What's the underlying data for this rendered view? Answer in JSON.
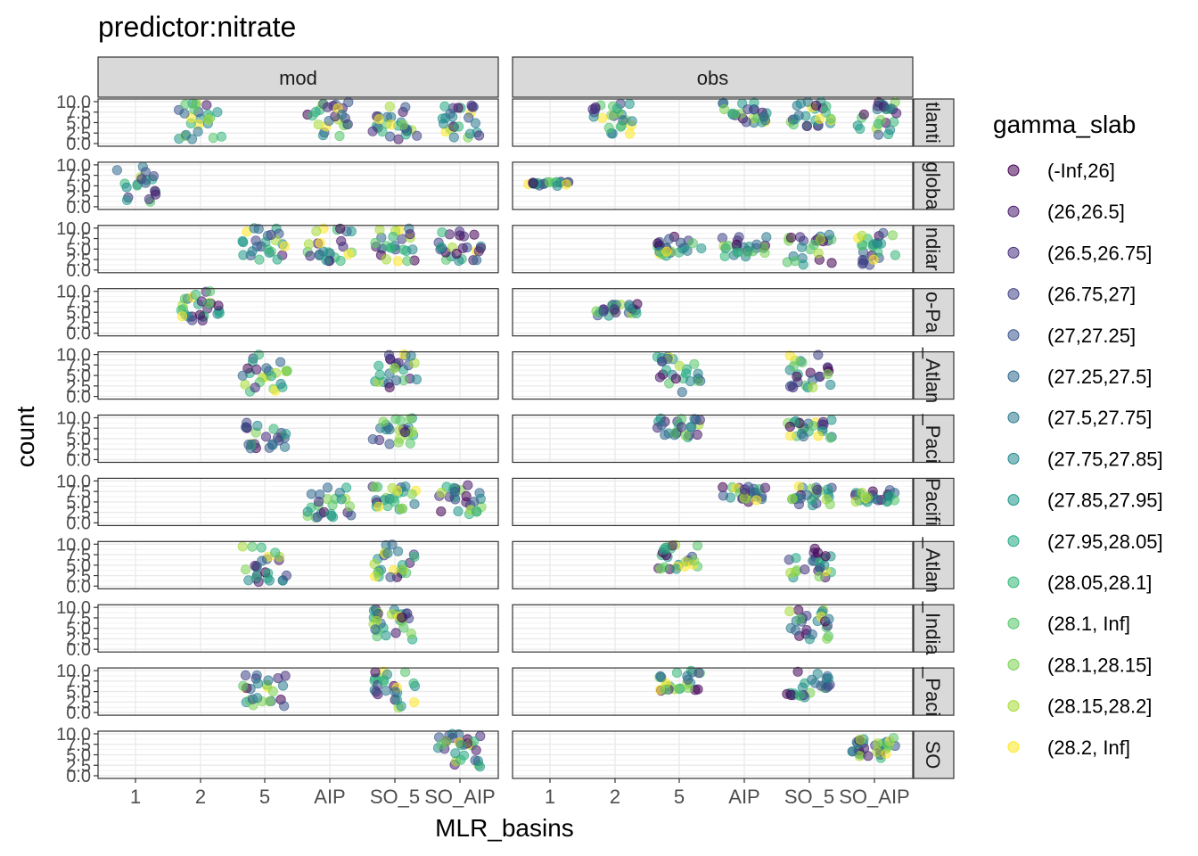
{
  "chart_data": {
    "type": "scatter",
    "title": "predictor:nitrate",
    "xlabel": "MLR_basins",
    "ylabel": "count",
    "x_categories": [
      "1",
      "2",
      "5",
      "AIP",
      "SO_5",
      "SO_AIP"
    ],
    "y_ticks": [
      "0.0",
      "2.5",
      "5.0",
      "7.5",
      "10.0"
    ],
    "ylim": [
      0,
      10
    ],
    "column_facets": [
      "mod",
      "obs"
    ],
    "row_facets": [
      "Atlantic",
      "global",
      "Indian",
      "Indo-Pacific",
      "N_Atlantic",
      "N_Pacific",
      "Pacific",
      "S_Atlantic",
      "S_Indian",
      "S_Pacific",
      "SO"
    ],
    "row_facet_labels": [
      "tlanti",
      "globa",
      "ndiar",
      "o-Pa",
      "_Atlan",
      "_Paci",
      "Pacifi",
      "_Atlan",
      "_India",
      "_Paci",
      "SO"
    ],
    "legend": {
      "title": "gamma_slab",
      "placement": "right",
      "entries": [
        "(-Inf,26]",
        "(26,26.5]",
        "(26.5,26.75]",
        "(26.75,27]",
        "(27,27.25]",
        "(27.25,27.5]",
        "(27.5,27.75]",
        "(27.75,27.85]",
        "(27.85,27.95]",
        "(27.95,28.05]",
        "(28.05,28.1]",
        "(28.1, Inf]",
        "(28.1,28.15]",
        "(28.15,28.2]",
        "(28.2, Inf]"
      ],
      "colors": [
        "#440154",
        "#481A6C",
        "#472F7D",
        "#414487",
        "#39568C",
        "#31688E",
        "#2A788E",
        "#23888E",
        "#1F988B",
        "#22A884",
        "#35B779",
        "#54C568",
        "#7AD151",
        "#A5DB36",
        "#FDE725"
      ]
    },
    "point_alpha": 0.55,
    "jitter": {
      "x": 0.35,
      "y": 1.0
    },
    "grid": true,
    "theme": "bw",
    "panels": [
      {
        "row": "Atlantic",
        "col": "mod",
        "groups": [
          {
            "x": "2",
            "n": 25,
            "y": [
              1,
              10
            ]
          },
          {
            "x": "AIP",
            "n": 25,
            "y": [
              1,
              10
            ]
          },
          {
            "x": "SO_5",
            "n": 25,
            "y": [
              1,
              10
            ]
          },
          {
            "x": "SO_AIP",
            "n": 25,
            "y": [
              1,
              10
            ]
          }
        ]
      },
      {
        "row": "Atlantic",
        "col": "obs",
        "groups": [
          {
            "x": "2",
            "n": 25,
            "y": [
              2,
              10
            ]
          },
          {
            "x": "AIP",
            "n": 25,
            "y": [
              5,
              10
            ]
          },
          {
            "x": "SO_5",
            "n": 25,
            "y": [
              4,
              10
            ]
          },
          {
            "x": "SO_AIP",
            "n": 25,
            "y": [
              2,
              10
            ]
          }
        ]
      },
      {
        "row": "global",
        "col": "mod",
        "groups": [
          {
            "x": "1",
            "n": 20,
            "y": [
              1,
              10
            ]
          }
        ]
      },
      {
        "row": "global",
        "col": "obs",
        "groups": [
          {
            "x": "1",
            "n": 20,
            "y": [
              5,
              6
            ]
          }
        ]
      },
      {
        "row": "Indian",
        "col": "mod",
        "groups": [
          {
            "x": "5",
            "n": 25,
            "y": [
              2,
              10
            ]
          },
          {
            "x": "AIP",
            "n": 25,
            "y": [
              2,
              10
            ]
          },
          {
            "x": "SO_5",
            "n": 25,
            "y": [
              2,
              10
            ]
          },
          {
            "x": "SO_AIP",
            "n": 25,
            "y": [
              2,
              10
            ]
          }
        ]
      },
      {
        "row": "Indian",
        "col": "obs",
        "groups": [
          {
            "x": "5",
            "n": 25,
            "y": [
              3,
              8
            ]
          },
          {
            "x": "AIP",
            "n": 25,
            "y": [
              3,
              8
            ]
          },
          {
            "x": "SO_5",
            "n": 25,
            "y": [
              1,
              9
            ]
          },
          {
            "x": "SO_AIP",
            "n": 25,
            "y": [
              1,
              9
            ]
          }
        ]
      },
      {
        "row": "Indo-Pacific",
        "col": "mod",
        "groups": [
          {
            "x": "2",
            "n": 28,
            "y": [
              3,
              10
            ]
          }
        ]
      },
      {
        "row": "Indo-Pacific",
        "col": "obs",
        "groups": [
          {
            "x": "2",
            "n": 25,
            "y": [
              4,
              7
            ]
          }
        ]
      },
      {
        "row": "N_Atlantic",
        "col": "mod",
        "groups": [
          {
            "x": "5",
            "n": 25,
            "y": [
              1,
              10
            ]
          },
          {
            "x": "SO_5",
            "n": 25,
            "y": [
              2,
              10
            ]
          }
        ]
      },
      {
        "row": "N_Atlantic",
        "col": "obs",
        "groups": [
          {
            "x": "5",
            "n": 25,
            "y": [
              1,
              10
            ]
          },
          {
            "x": "SO_5",
            "n": 25,
            "y": [
              2,
              10
            ]
          }
        ]
      },
      {
        "row": "N_Pacific",
        "col": "mod",
        "groups": [
          {
            "x": "5",
            "n": 25,
            "y": [
              2,
              9
            ]
          },
          {
            "x": "SO_5",
            "n": 25,
            "y": [
              3,
              10
            ]
          }
        ]
      },
      {
        "row": "N_Pacific",
        "col": "obs",
        "groups": [
          {
            "x": "5",
            "n": 25,
            "y": [
              5,
              10
            ]
          },
          {
            "x": "SO_5",
            "n": 25,
            "y": [
              5,
              10
            ]
          }
        ]
      },
      {
        "row": "Pacific",
        "col": "mod",
        "groups": [
          {
            "x": "AIP",
            "n": 25,
            "y": [
              1,
              9
            ]
          },
          {
            "x": "SO_5",
            "n": 25,
            "y": [
              3,
              9
            ]
          },
          {
            "x": "SO_AIP",
            "n": 25,
            "y": [
              2,
              9
            ]
          }
        ]
      },
      {
        "row": "Pacific",
        "col": "obs",
        "groups": [
          {
            "x": "AIP",
            "n": 25,
            "y": [
              5,
              9
            ]
          },
          {
            "x": "SO_5",
            "n": 25,
            "y": [
              4,
              9
            ]
          },
          {
            "x": "SO_AIP",
            "n": 25,
            "y": [
              5,
              8
            ]
          }
        ]
      },
      {
        "row": "S_Atlantic",
        "col": "mod",
        "groups": [
          {
            "x": "5",
            "n": 25,
            "y": [
              1,
              10
            ]
          },
          {
            "x": "SO_5",
            "n": 25,
            "y": [
              2,
              10
            ]
          }
        ]
      },
      {
        "row": "S_Atlantic",
        "col": "obs",
        "groups": [
          {
            "x": "5",
            "n": 25,
            "y": [
              4,
              10
            ]
          },
          {
            "x": "SO_5",
            "n": 25,
            "y": [
              2,
              10
            ]
          }
        ]
      },
      {
        "row": "S_Indian",
        "col": "mod",
        "groups": [
          {
            "x": "SO_5",
            "n": 30,
            "y": [
              2,
              10
            ]
          }
        ]
      },
      {
        "row": "S_Indian",
        "col": "obs",
        "groups": [
          {
            "x": "SO_5",
            "n": 25,
            "y": [
              2,
              10
            ]
          }
        ]
      },
      {
        "row": "S_Pacific",
        "col": "mod",
        "groups": [
          {
            "x": "5",
            "n": 25,
            "y": [
              1,
              10
            ]
          },
          {
            "x": "SO_5",
            "n": 25,
            "y": [
              1,
              10
            ]
          }
        ]
      },
      {
        "row": "S_Pacific",
        "col": "obs",
        "groups": [
          {
            "x": "5",
            "n": 25,
            "y": [
              5,
              10
            ]
          },
          {
            "x": "SO_5",
            "n": 25,
            "y": [
              3,
              10
            ]
          }
        ]
      },
      {
        "row": "SO",
        "col": "mod",
        "groups": [
          {
            "x": "SO_AIP",
            "n": 30,
            "y": [
              2,
              10
            ]
          }
        ]
      },
      {
        "row": "SO",
        "col": "obs",
        "groups": [
          {
            "x": "SO_AIP",
            "n": 30,
            "y": [
              4,
              9
            ]
          }
        ]
      }
    ]
  }
}
